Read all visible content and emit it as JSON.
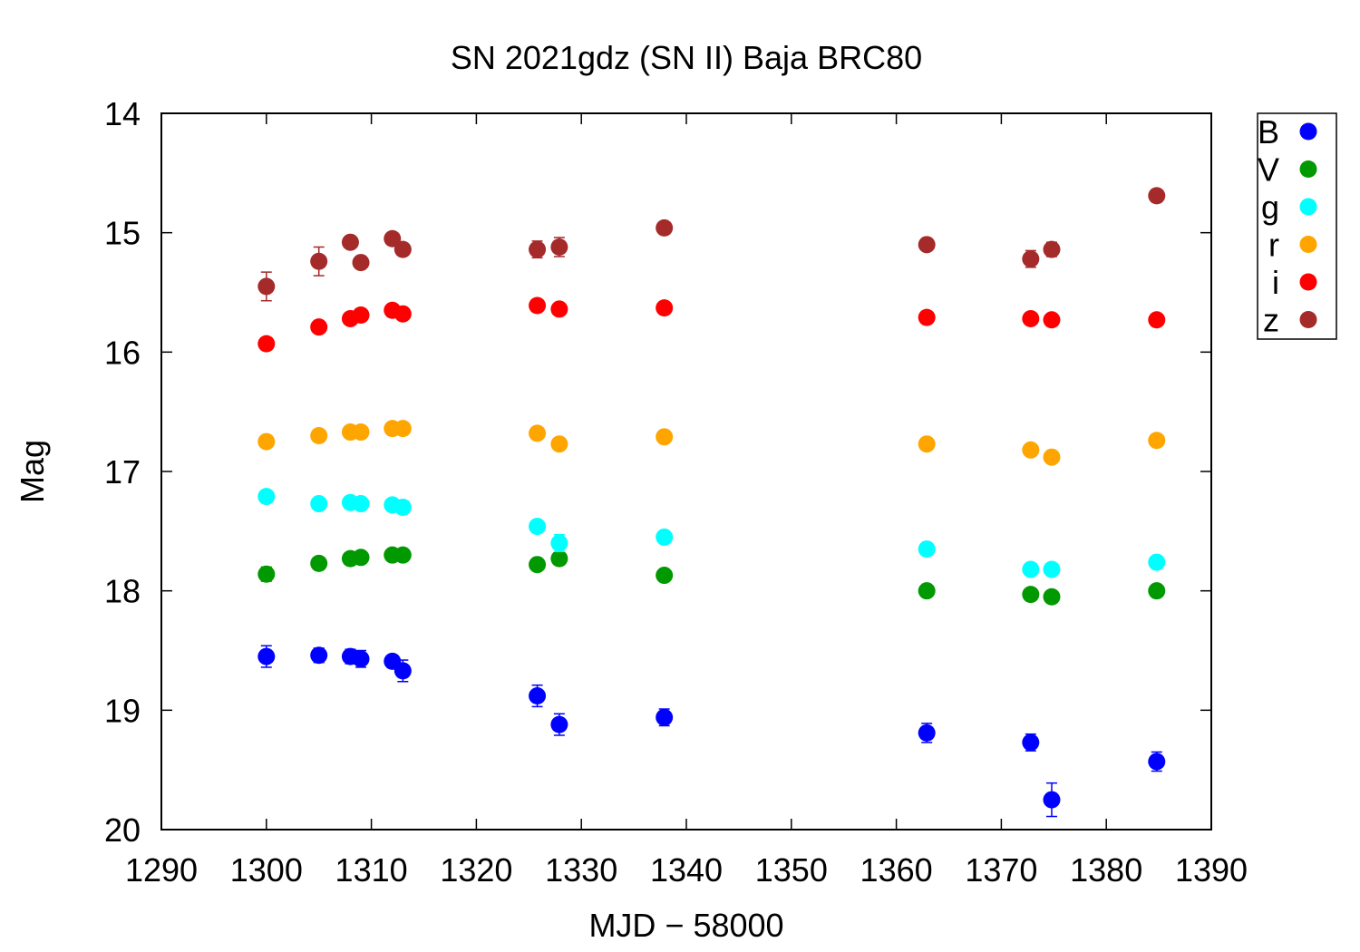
{
  "chart_data": {
    "type": "scatter",
    "title": "SN 2021gdz (SN II) Baja BRC80",
    "xlabel": "MJD − 58000",
    "ylabel": "Mag",
    "xlim": [
      1290,
      1390
    ],
    "ylim": [
      20,
      14
    ],
    "y_inverted": true,
    "xticks": [
      "1290",
      "1300",
      "1310",
      "1320",
      "1330",
      "1340",
      "1350",
      "1360",
      "1370",
      "1380",
      "1390"
    ],
    "yticks": [
      "14",
      "15",
      "16",
      "17",
      "18",
      "19",
      "20"
    ],
    "grid": false,
    "legend_position": "outside-top-right",
    "series": [
      {
        "name": "B",
        "color": "#0000ff",
        "points": [
          {
            "x": 1300.0,
            "y": 18.55,
            "err": 0.09
          },
          {
            "x": 1305.0,
            "y": 18.54,
            "err": 0.06
          },
          {
            "x": 1308.0,
            "y": 18.55,
            "err": 0.06
          },
          {
            "x": 1309.0,
            "y": 18.57,
            "err": 0.07
          },
          {
            "x": 1312.0,
            "y": 18.59,
            "err": 0.05
          },
          {
            "x": 1313.0,
            "y": 18.67,
            "err": 0.09
          },
          {
            "x": 1325.8,
            "y": 18.88,
            "err": 0.09
          },
          {
            "x": 1327.9,
            "y": 19.12,
            "err": 0.09
          },
          {
            "x": 1337.9,
            "y": 19.06,
            "err": 0.07
          },
          {
            "x": 1362.9,
            "y": 19.19,
            "err": 0.08
          },
          {
            "x": 1372.8,
            "y": 19.27,
            "err": 0.07
          },
          {
            "x": 1374.8,
            "y": 19.75,
            "err": 0.14
          },
          {
            "x": 1384.8,
            "y": 19.43,
            "err": 0.08
          }
        ]
      },
      {
        "name": "V",
        "color": "#009900",
        "points": [
          {
            "x": 1300.0,
            "y": 17.86,
            "err": 0.06
          },
          {
            "x": 1305.0,
            "y": 17.77,
            "err": 0.03
          },
          {
            "x": 1308.0,
            "y": 17.73,
            "err": 0.03
          },
          {
            "x": 1309.0,
            "y": 17.72,
            "err": 0.03
          },
          {
            "x": 1312.0,
            "y": 17.7,
            "err": 0.03
          },
          {
            "x": 1313.0,
            "y": 17.7,
            "err": 0.03
          },
          {
            "x": 1325.8,
            "y": 17.78,
            "err": 0.03
          },
          {
            "x": 1327.9,
            "y": 17.73,
            "err": 0.03
          },
          {
            "x": 1337.9,
            "y": 17.87,
            "err": 0.03
          },
          {
            "x": 1362.9,
            "y": 18.0,
            "err": 0.03
          },
          {
            "x": 1372.8,
            "y": 18.03,
            "err": 0.03
          },
          {
            "x": 1374.8,
            "y": 18.05,
            "err": 0.03
          },
          {
            "x": 1384.8,
            "y": 18.0,
            "err": 0.03
          }
        ]
      },
      {
        "name": "g",
        "color": "#00ffff",
        "points": [
          {
            "x": 1300.0,
            "y": 17.21,
            "err": 0.03
          },
          {
            "x": 1305.0,
            "y": 17.27,
            "err": 0.03
          },
          {
            "x": 1308.0,
            "y": 17.26,
            "err": 0.03
          },
          {
            "x": 1309.0,
            "y": 17.27,
            "err": 0.03
          },
          {
            "x": 1312.0,
            "y": 17.28,
            "err": 0.03
          },
          {
            "x": 1313.0,
            "y": 17.3,
            "err": 0.04
          },
          {
            "x": 1325.8,
            "y": 17.46,
            "err": 0.03
          },
          {
            "x": 1327.9,
            "y": 17.6,
            "err": 0.07
          },
          {
            "x": 1337.9,
            "y": 17.55,
            "err": 0.03
          },
          {
            "x": 1362.9,
            "y": 17.65,
            "err": 0.03
          },
          {
            "x": 1372.8,
            "y": 17.82,
            "err": 0.03
          },
          {
            "x": 1374.8,
            "y": 17.82,
            "err": 0.03
          },
          {
            "x": 1384.8,
            "y": 17.76,
            "err": 0.03
          }
        ]
      },
      {
        "name": "r",
        "color": "#ffa500",
        "points": [
          {
            "x": 1300.0,
            "y": 16.75,
            "err": 0.03
          },
          {
            "x": 1305.0,
            "y": 16.7,
            "err": 0.03
          },
          {
            "x": 1308.0,
            "y": 16.67,
            "err": 0.03
          },
          {
            "x": 1309.0,
            "y": 16.67,
            "err": 0.03
          },
          {
            "x": 1312.0,
            "y": 16.64,
            "err": 0.03
          },
          {
            "x": 1313.0,
            "y": 16.64,
            "err": 0.03
          },
          {
            "x": 1325.8,
            "y": 16.68,
            "err": 0.03
          },
          {
            "x": 1327.9,
            "y": 16.77,
            "err": 0.03
          },
          {
            "x": 1337.9,
            "y": 16.71,
            "err": 0.03
          },
          {
            "x": 1362.9,
            "y": 16.77,
            "err": 0.03
          },
          {
            "x": 1372.8,
            "y": 16.82,
            "err": 0.03
          },
          {
            "x": 1374.8,
            "y": 16.88,
            "err": 0.03
          },
          {
            "x": 1384.8,
            "y": 16.74,
            "err": 0.03
          }
        ]
      },
      {
        "name": "i",
        "color": "#ff0000",
        "points": [
          {
            "x": 1300.0,
            "y": 15.93,
            "err": 0.05
          },
          {
            "x": 1305.0,
            "y": 15.79,
            "err": 0.03
          },
          {
            "x": 1308.0,
            "y": 15.72,
            "err": 0.03
          },
          {
            "x": 1309.0,
            "y": 15.69,
            "err": 0.03
          },
          {
            "x": 1312.0,
            "y": 15.65,
            "err": 0.03
          },
          {
            "x": 1313.0,
            "y": 15.68,
            "err": 0.03
          },
          {
            "x": 1325.8,
            "y": 15.61,
            "err": 0.03
          },
          {
            "x": 1327.9,
            "y": 15.64,
            "err": 0.05
          },
          {
            "x": 1337.9,
            "y": 15.63,
            "err": 0.03
          },
          {
            "x": 1362.9,
            "y": 15.71,
            "err": 0.03
          },
          {
            "x": 1372.8,
            "y": 15.72,
            "err": 0.03
          },
          {
            "x": 1374.8,
            "y": 15.73,
            "err": 0.03
          },
          {
            "x": 1384.8,
            "y": 15.73,
            "err": 0.03
          }
        ]
      },
      {
        "name": "z",
        "color": "#a52a2a",
        "points": [
          {
            "x": 1300.0,
            "y": 15.45,
            "err": 0.12
          },
          {
            "x": 1305.0,
            "y": 15.24,
            "err": 0.12
          },
          {
            "x": 1308.0,
            "y": 15.08,
            "err": 0.03
          },
          {
            "x": 1309.0,
            "y": 15.25,
            "err": 0.03
          },
          {
            "x": 1312.0,
            "y": 15.05,
            "err": 0.03
          },
          {
            "x": 1313.0,
            "y": 15.14,
            "err": 0.03
          },
          {
            "x": 1325.8,
            "y": 15.14,
            "err": 0.07
          },
          {
            "x": 1327.9,
            "y": 15.12,
            "err": 0.08
          },
          {
            "x": 1337.9,
            "y": 14.96,
            "err": 0.03
          },
          {
            "x": 1362.9,
            "y": 15.1,
            "err": 0.03
          },
          {
            "x": 1372.8,
            "y": 15.22,
            "err": 0.07
          },
          {
            "x": 1374.8,
            "y": 15.14,
            "err": 0.06
          },
          {
            "x": 1384.8,
            "y": 14.69,
            "err": 0.03
          }
        ]
      }
    ]
  }
}
